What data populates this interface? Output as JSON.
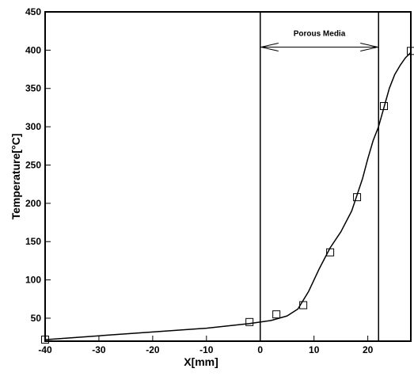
{
  "chart_data": {
    "type": "line",
    "title": "",
    "xlabel": "X[mm]",
    "ylabel": "Temperature[°C]",
    "xlim": [
      -40,
      28
    ],
    "ylim": [
      20,
      450
    ],
    "xticks": [
      -40,
      -30,
      -20,
      -10,
      0,
      10,
      20
    ],
    "yticks": [
      50,
      100,
      150,
      200,
      250,
      300,
      350,
      400,
      450
    ],
    "grid": false,
    "legend": "none",
    "series": [
      {
        "kind": "curve",
        "x": [
          -40,
          -30,
          -20,
          -10,
          -2,
          2,
          5,
          7,
          9,
          11,
          13,
          15,
          17,
          19,
          20,
          21,
          22,
          23,
          24,
          25,
          26,
          27,
          28
        ],
        "y": [
          22,
          27,
          32,
          37,
          43,
          47,
          53,
          62,
          85,
          115,
          142,
          163,
          190,
          232,
          258,
          282,
          300,
          325,
          350,
          368,
          380,
          390,
          397
        ]
      },
      {
        "kind": "markers",
        "marker": "square",
        "x": [
          -40,
          -2,
          3,
          8,
          13,
          18,
          23,
          28
        ],
        "y": [
          22,
          45,
          55,
          67,
          136,
          208,
          327,
          399
        ]
      }
    ],
    "vlines": [
      0,
      22
    ],
    "annotations": [
      {
        "text": "Porous Media",
        "arrow": "double",
        "x_from": 0,
        "x_to": 22,
        "y": 404
      }
    ]
  }
}
